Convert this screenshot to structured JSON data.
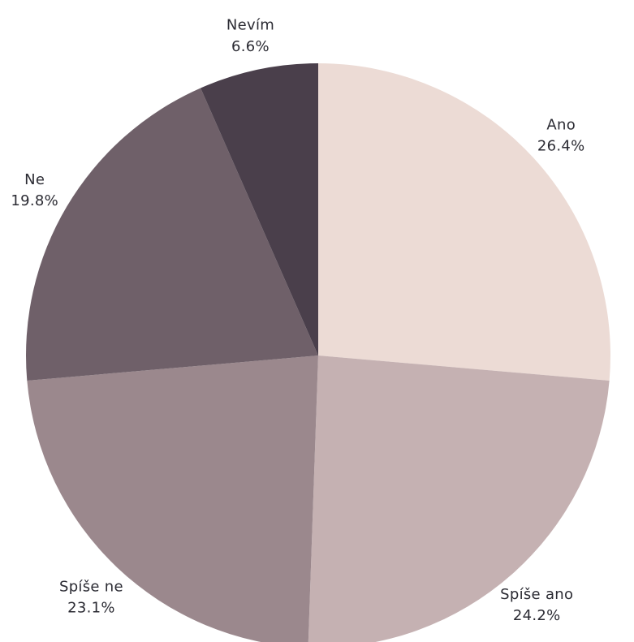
{
  "chart_data": {
    "type": "pie",
    "title": "",
    "slices": [
      {
        "label": "Ano",
        "value": 26.4,
        "value_label": "26.4%",
        "color": "#ecdbd5"
      },
      {
        "label": "Spíše ano",
        "value": 24.2,
        "value_label": "24.2%",
        "color": "#c5b1b2"
      },
      {
        "label": "Spíše ne",
        "value": 23.1,
        "value_label": "23.1%",
        "color": "#9b888d"
      },
      {
        "label": "Ne",
        "value": 19.8,
        "value_label": "19.8%",
        "color": "#6f6069"
      },
      {
        "label": "Nevím",
        "value": 6.6,
        "value_label": "6.6%",
        "color": "#4a3f4b"
      }
    ],
    "start_angle": "top (12 o'clock)",
    "direction": "clockwise",
    "legend": "none (labels outside slices)"
  }
}
